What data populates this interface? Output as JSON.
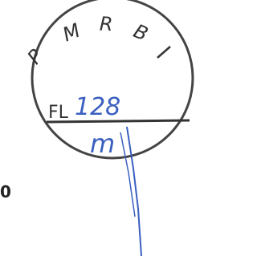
{
  "stamp": {
    "letters": [
      "P",
      "M",
      "R",
      "B"
    ],
    "prefix": "FL",
    "number": "128",
    "initials": "m"
  },
  "edge_text": "0"
}
